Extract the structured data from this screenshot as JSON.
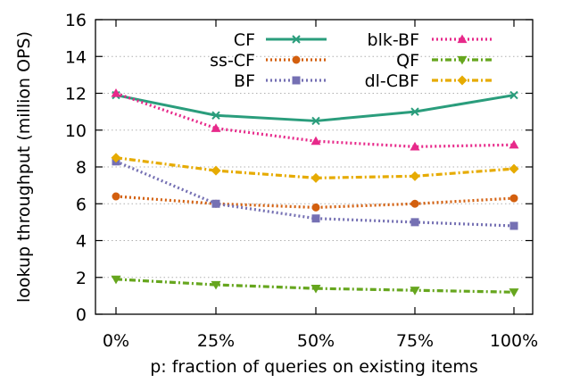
{
  "chart_data": {
    "type": "line",
    "title": "",
    "xlabel": "p: fraction of queries on existing items",
    "ylabel": "lookup throughput (million OPS)",
    "categories": [
      "0%",
      "25%",
      "50%",
      "75%",
      "100%"
    ],
    "ylim": [
      0,
      16
    ],
    "yticks": [
      "0",
      "2",
      "4",
      "6",
      "8",
      "10",
      "12",
      "14",
      "16"
    ],
    "grid": "horizontal dotted",
    "legend": "top, two columns",
    "series": [
      {
        "name": "CF",
        "values": [
          11.9,
          10.8,
          10.5,
          11.0,
          11.9
        ],
        "color": "#2a9d7c",
        "style": "solid",
        "marker": "x"
      },
      {
        "name": "ss-CF",
        "values": [
          6.4,
          6.0,
          5.8,
          6.0,
          6.3
        ],
        "color": "#d35f0e",
        "style": "dotted",
        "marker": "circle"
      },
      {
        "name": "BF",
        "values": [
          8.3,
          6.0,
          5.2,
          5.0,
          4.8
        ],
        "color": "#7570b3",
        "style": "dotted",
        "marker": "square"
      },
      {
        "name": "blk-BF",
        "values": [
          12.0,
          10.1,
          9.4,
          9.1,
          9.2
        ],
        "color": "#e7298a",
        "style": "dotted",
        "marker": "triangle-up"
      },
      {
        "name": "QF",
        "values": [
          1.9,
          1.6,
          1.4,
          1.3,
          1.2
        ],
        "color": "#66a61e",
        "style": "dashdot",
        "marker": "triangle-down"
      },
      {
        "name": "dl-CBF",
        "values": [
          8.5,
          7.8,
          7.4,
          7.5,
          7.9
        ],
        "color": "#e6ab02",
        "style": "dashdot",
        "marker": "diamond"
      }
    ]
  }
}
